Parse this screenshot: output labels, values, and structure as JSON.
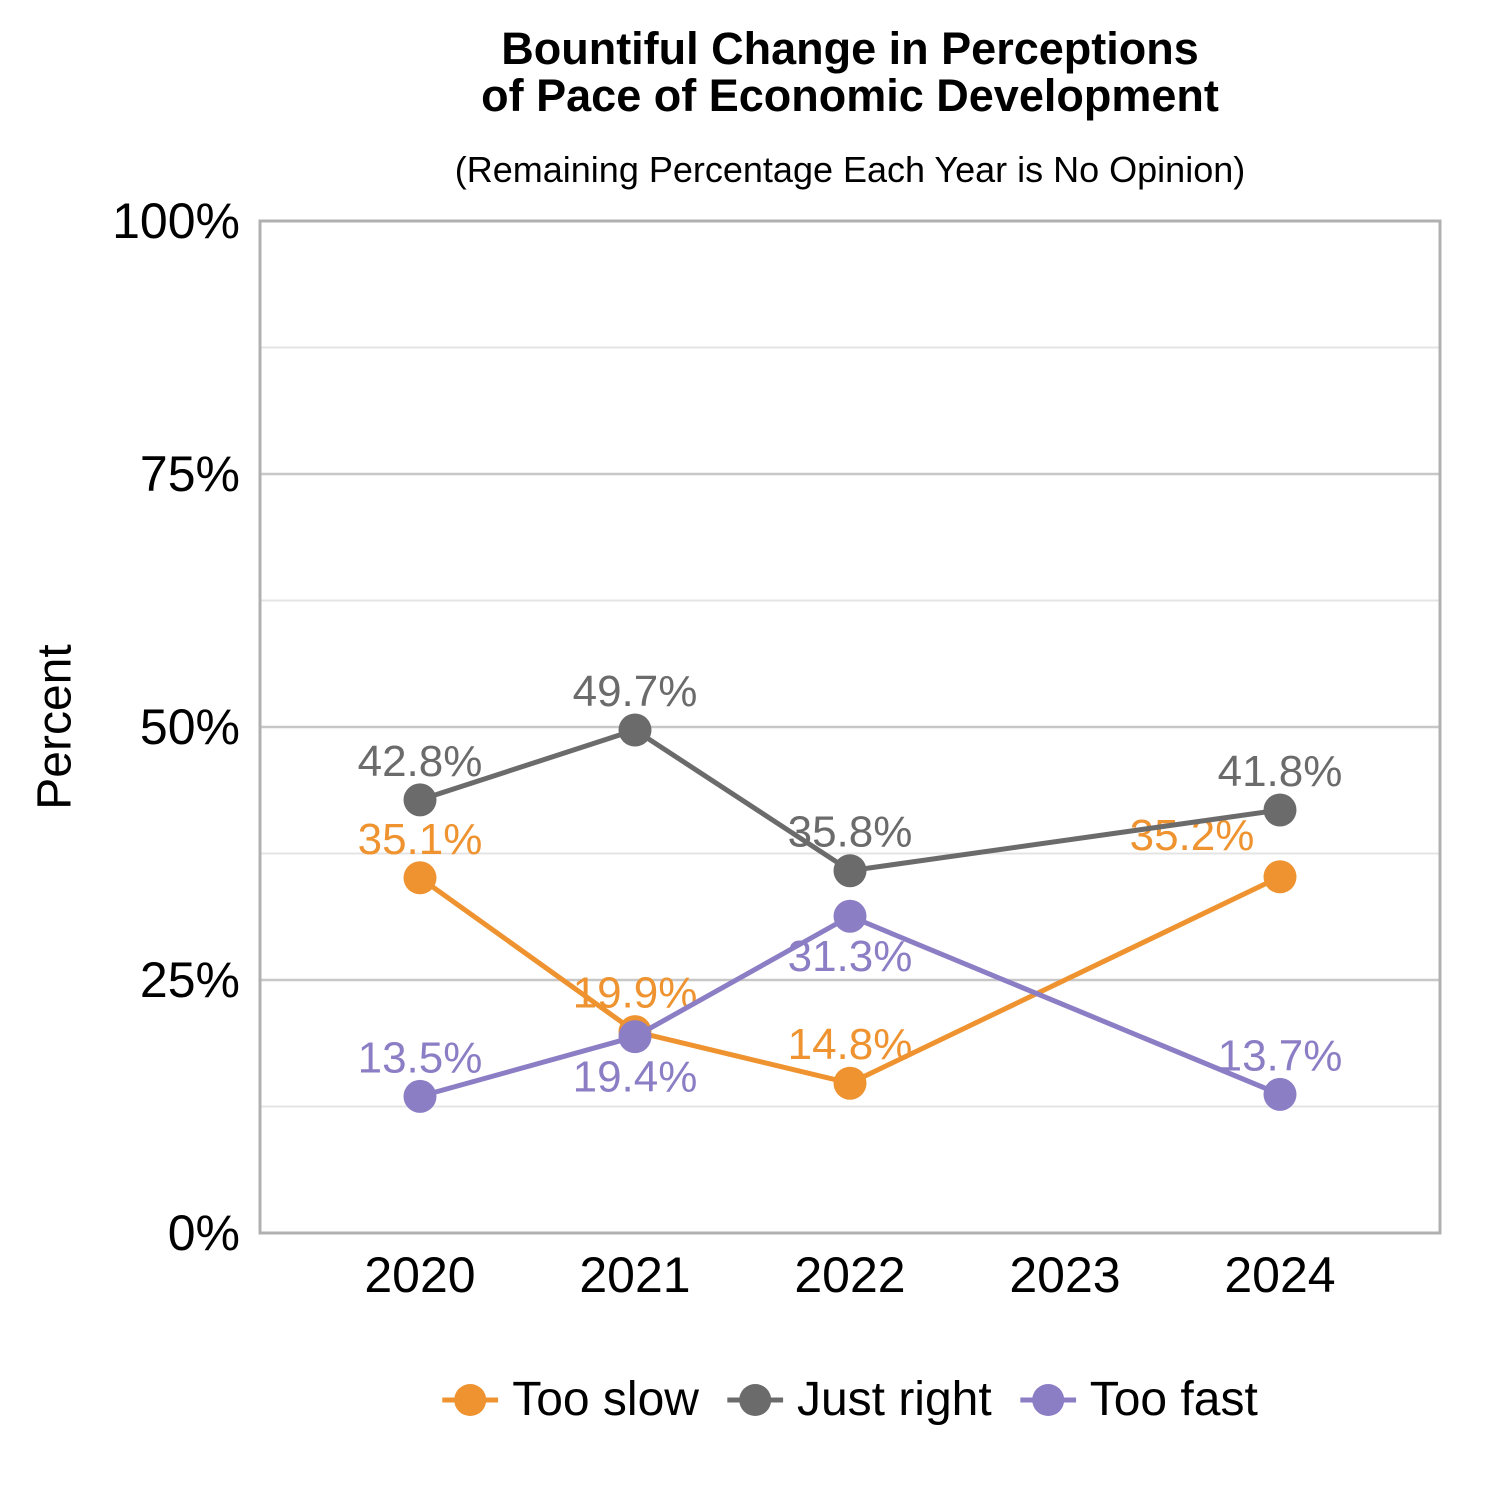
{
  "chart": {
    "title_line1": "Bountiful Change in Perceptions",
    "title_line2": "of Pace of Economic Development",
    "subtitle": "(Remaining Percentage Each Year is No Opinion)",
    "y_axis_label": "Percent"
  },
  "chart_data": {
    "type": "line",
    "title": "Bountiful Change in Perceptions of Pace of Economic Development",
    "subtitle": "(Remaining Percentage Each Year is No Opinion)",
    "xlabel": "",
    "ylabel": "Percent",
    "categories": [
      "2020",
      "2021",
      "2022",
      "2023",
      "2024"
    ],
    "ylim": [
      0,
      100
    ],
    "y_major_ticks": [
      0,
      25,
      50,
      75,
      100
    ],
    "y_tick_labels": [
      "0%",
      "25%",
      "50%",
      "75%",
      "100%"
    ],
    "y_minor_ticks": [
      12.5,
      37.5,
      62.5,
      87.5
    ],
    "grid": "horizontal-only, major and minor",
    "legend_position": "bottom",
    "series": [
      {
        "name": "Too slow",
        "color": "#EE9330",
        "values": [
          35.1,
          19.9,
          14.8,
          null,
          35.2
        ],
        "point_labels": [
          "35.1%",
          "19.9%",
          "14.8%",
          null,
          "35.2%"
        ],
        "label_placement": [
          "above",
          "above",
          "above",
          null,
          "above-left"
        ]
      },
      {
        "name": "Just right",
        "color": "#6B6B6B",
        "values": [
          42.8,
          49.7,
          35.8,
          null,
          41.8
        ],
        "point_labels": [
          "42.8%",
          "49.7%",
          "35.8%",
          null,
          "41.8%"
        ],
        "label_placement": [
          "above",
          "above",
          "above",
          null,
          "above"
        ]
      },
      {
        "name": "Too fast",
        "color": "#8C7EC5",
        "values": [
          13.5,
          19.4,
          31.3,
          null,
          13.7
        ],
        "point_labels": [
          "13.5%",
          "19.4%",
          "31.3%",
          null,
          "13.7%"
        ],
        "label_placement": [
          "above",
          "below",
          "below",
          null,
          "above"
        ]
      }
    ],
    "style_colors": {
      "major_grid": "#C7C7C7",
      "minor_grid": "#E4E4E4",
      "panel_border": "#B0B0B0",
      "text": "#000000"
    }
  }
}
